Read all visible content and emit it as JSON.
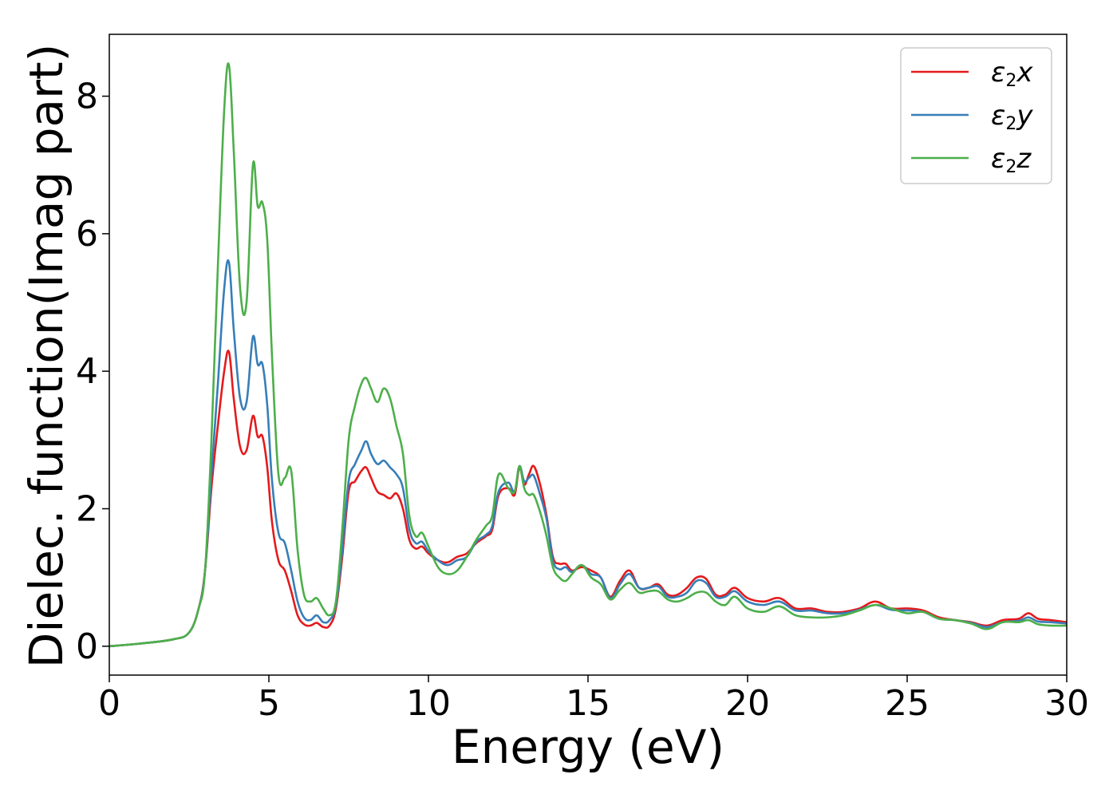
{
  "chart_data": {
    "type": "line",
    "xlabel": "Energy (eV)",
    "ylabel": "Dielec. function(Imag part)",
    "xlim": [
      0,
      30
    ],
    "ylim": [
      -0.42,
      8.9
    ],
    "xticks": [
      0,
      5,
      10,
      15,
      20,
      25,
      30
    ],
    "yticks": [
      0,
      2,
      4,
      6,
      8
    ],
    "grid": false,
    "legend_position": "top-right",
    "series": [
      {
        "name": "ε₂x",
        "legend_base": "ε",
        "legend_sub": "2",
        "legend_var": "x",
        "color": "#e41a1c",
        "x": [
          0,
          1,
          2,
          2.5,
          2.8,
          3.0,
          3.2,
          3.4,
          3.6,
          3.75,
          3.9,
          4.1,
          4.3,
          4.5,
          4.65,
          4.8,
          4.95,
          5.1,
          5.3,
          5.5,
          5.7,
          5.9,
          6.1,
          6.3,
          6.5,
          6.7,
          6.9,
          7.1,
          7.3,
          7.5,
          7.7,
          7.9,
          8.05,
          8.2,
          8.4,
          8.6,
          8.8,
          9.0,
          9.2,
          9.4,
          9.6,
          9.8,
          10.0,
          10.3,
          10.6,
          10.9,
          11.2,
          11.5,
          11.8,
          12.0,
          12.2,
          12.5,
          12.7,
          12.85,
          13.0,
          13.15,
          13.3,
          13.5,
          13.7,
          13.9,
          14.1,
          14.3,
          14.5,
          14.8,
          15.1,
          15.4,
          15.7,
          16.0,
          16.3,
          16.6,
          16.9,
          17.2,
          17.5,
          17.8,
          18.1,
          18.4,
          18.7,
          19.0,
          19.3,
          19.6,
          20.0,
          20.5,
          21.0,
          21.5,
          22.0,
          22.5,
          23.0,
          23.5,
          24.0,
          24.5,
          25.0,
          25.5,
          26.0,
          26.5,
          27.0,
          27.5,
          28.0,
          28.5,
          28.8,
          29.1,
          29.5,
          30.0
        ],
        "y": [
          0.0,
          0.04,
          0.1,
          0.2,
          0.55,
          1.1,
          2.3,
          3.2,
          4.0,
          4.28,
          3.6,
          2.9,
          2.85,
          3.35,
          3.05,
          3.05,
          2.6,
          1.8,
          1.25,
          1.1,
          0.8,
          0.45,
          0.32,
          0.3,
          0.34,
          0.28,
          0.3,
          0.55,
          1.3,
          2.25,
          2.4,
          2.55,
          2.6,
          2.45,
          2.25,
          2.2,
          2.15,
          2.22,
          2.0,
          1.55,
          1.42,
          1.45,
          1.35,
          1.25,
          1.22,
          1.3,
          1.35,
          1.5,
          1.6,
          1.7,
          2.2,
          2.3,
          2.2,
          2.6,
          2.35,
          2.5,
          2.62,
          2.35,
          1.9,
          1.3,
          1.2,
          1.2,
          1.1,
          1.15,
          1.1,
          1.0,
          0.72,
          0.95,
          1.1,
          0.85,
          0.85,
          0.9,
          0.75,
          0.75,
          0.85,
          1.0,
          0.98,
          0.75,
          0.75,
          0.85,
          0.7,
          0.65,
          0.7,
          0.55,
          0.55,
          0.5,
          0.5,
          0.55,
          0.65,
          0.55,
          0.55,
          0.52,
          0.42,
          0.38,
          0.35,
          0.3,
          0.38,
          0.4,
          0.48,
          0.4,
          0.38,
          0.35
        ]
      },
      {
        "name": "ε₂y",
        "legend_base": "ε",
        "legend_sub": "2",
        "legend_var": "y",
        "color": "#377eb8",
        "x": [
          0,
          1,
          2,
          2.5,
          2.8,
          3.0,
          3.2,
          3.4,
          3.6,
          3.75,
          3.9,
          4.1,
          4.3,
          4.5,
          4.65,
          4.8,
          4.95,
          5.1,
          5.3,
          5.5,
          5.7,
          5.9,
          6.1,
          6.3,
          6.5,
          6.7,
          6.9,
          7.1,
          7.3,
          7.5,
          7.7,
          7.9,
          8.05,
          8.2,
          8.4,
          8.6,
          8.8,
          9.0,
          9.2,
          9.4,
          9.6,
          9.8,
          10.0,
          10.3,
          10.6,
          10.9,
          11.2,
          11.5,
          11.8,
          12.0,
          12.2,
          12.5,
          12.7,
          12.85,
          13.0,
          13.15,
          13.3,
          13.5,
          13.7,
          13.9,
          14.1,
          14.3,
          14.5,
          14.8,
          15.1,
          15.4,
          15.7,
          16.0,
          16.3,
          16.6,
          16.9,
          17.2,
          17.5,
          17.8,
          18.1,
          18.4,
          18.7,
          19.0,
          19.3,
          19.6,
          20.0,
          20.5,
          21.0,
          21.5,
          22.0,
          22.5,
          23.0,
          23.5,
          24.0,
          24.5,
          25.0,
          25.5,
          26.0,
          26.5,
          27.0,
          27.5,
          28.0,
          28.5,
          28.8,
          29.1,
          29.5,
          30.0
        ],
        "y": [
          0.0,
          0.04,
          0.1,
          0.2,
          0.55,
          1.1,
          2.5,
          3.8,
          5.2,
          5.58,
          4.6,
          3.6,
          3.55,
          4.5,
          4.1,
          4.1,
          3.5,
          2.4,
          1.65,
          1.5,
          1.1,
          0.65,
          0.42,
          0.38,
          0.45,
          0.35,
          0.38,
          0.6,
          1.4,
          2.4,
          2.65,
          2.85,
          2.98,
          2.8,
          2.65,
          2.7,
          2.6,
          2.5,
          2.3,
          1.7,
          1.5,
          1.52,
          1.38,
          1.25,
          1.18,
          1.25,
          1.3,
          1.52,
          1.62,
          1.75,
          2.25,
          2.38,
          2.25,
          2.62,
          2.4,
          2.45,
          2.48,
          2.2,
          1.85,
          1.25,
          1.12,
          1.15,
          1.08,
          1.18,
          1.05,
          1.0,
          0.7,
          0.9,
          1.05,
          0.85,
          0.85,
          0.87,
          0.72,
          0.72,
          0.78,
          0.95,
          0.92,
          0.72,
          0.72,
          0.8,
          0.65,
          0.6,
          0.65,
          0.52,
          0.52,
          0.48,
          0.48,
          0.53,
          0.6,
          0.53,
          0.52,
          0.5,
          0.4,
          0.38,
          0.34,
          0.28,
          0.35,
          0.37,
          0.42,
          0.36,
          0.35,
          0.33
        ]
      },
      {
        "name": "ε₂z",
        "legend_base": "ε",
        "legend_sub": "2",
        "legend_var": "z",
        "color": "#4daf4a",
        "x": [
          0,
          1,
          2,
          2.5,
          2.8,
          3.0,
          3.2,
          3.4,
          3.6,
          3.75,
          3.9,
          4.1,
          4.3,
          4.5,
          4.65,
          4.8,
          4.95,
          5.1,
          5.3,
          5.5,
          5.7,
          5.9,
          6.1,
          6.3,
          6.5,
          6.7,
          6.9,
          7.1,
          7.3,
          7.5,
          7.7,
          7.9,
          8.05,
          8.2,
          8.4,
          8.6,
          8.8,
          9.0,
          9.2,
          9.4,
          9.6,
          9.8,
          10.0,
          10.3,
          10.6,
          10.9,
          11.2,
          11.5,
          11.8,
          12.0,
          12.2,
          12.5,
          12.7,
          12.85,
          13.0,
          13.15,
          13.3,
          13.5,
          13.7,
          13.9,
          14.1,
          14.3,
          14.5,
          14.8,
          15.1,
          15.4,
          15.7,
          16.0,
          16.3,
          16.6,
          16.9,
          17.2,
          17.5,
          17.8,
          18.1,
          18.4,
          18.7,
          19.0,
          19.3,
          19.6,
          20.0,
          20.5,
          21.0,
          21.5,
          22.0,
          22.5,
          23.0,
          23.5,
          24.0,
          24.5,
          25.0,
          25.5,
          26.0,
          26.5,
          27.0,
          27.5,
          28.0,
          28.5,
          28.8,
          29.1,
          29.5,
          30.0
        ],
        "y": [
          0.0,
          0.04,
          0.1,
          0.2,
          0.55,
          1.1,
          3.0,
          5.5,
          7.8,
          8.45,
          7.2,
          5.2,
          5.0,
          7.0,
          6.4,
          6.45,
          5.9,
          4.2,
          2.5,
          2.45,
          2.55,
          1.4,
          0.75,
          0.65,
          0.7,
          0.55,
          0.45,
          0.65,
          1.7,
          3.0,
          3.5,
          3.82,
          3.9,
          3.75,
          3.55,
          3.75,
          3.6,
          3.2,
          2.8,
          1.9,
          1.6,
          1.65,
          1.45,
          1.15,
          1.05,
          1.1,
          1.3,
          1.55,
          1.75,
          1.9,
          2.5,
          2.3,
          2.25,
          2.62,
          2.3,
          2.2,
          2.2,
          1.95,
          1.6,
          1.15,
          1.0,
          0.95,
          1.05,
          1.18,
          1.0,
          0.9,
          0.68,
          0.82,
          0.92,
          0.78,
          0.8,
          0.8,
          0.68,
          0.65,
          0.7,
          0.78,
          0.78,
          0.65,
          0.6,
          0.72,
          0.55,
          0.5,
          0.58,
          0.45,
          0.42,
          0.42,
          0.45,
          0.52,
          0.6,
          0.55,
          0.48,
          0.5,
          0.4,
          0.38,
          0.33,
          0.25,
          0.35,
          0.35,
          0.38,
          0.32,
          0.3,
          0.3
        ]
      }
    ]
  }
}
